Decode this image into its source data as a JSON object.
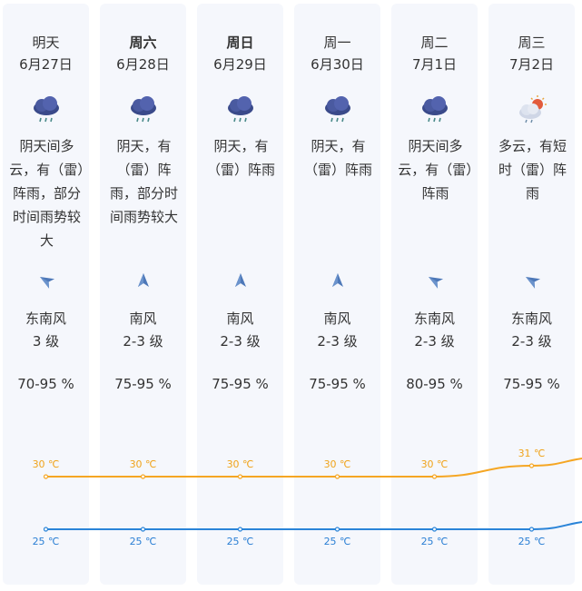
{
  "days": [
    {
      "name": "明天",
      "date": "6月27日",
      "bold": false,
      "icon": "thunder-rain-icon",
      "desc": "阴天间多云，有（雷）阵雨，部分时间雨势较大",
      "wind_icon": "wind-arrow-southeast-icon",
      "wind_rot": -60,
      "wind_dir": "东南风",
      "wind_lvl": "3 级",
      "humidity": "70-95 %",
      "hi": 30,
      "lo": 25,
      "hi_label": "30 ℃",
      "lo_label": "25 ℃"
    },
    {
      "name": "周六",
      "date": "6月28日",
      "bold": true,
      "icon": "thunder-rain-icon",
      "desc": "阴天，有（雷）阵雨，部分时间雨势较大",
      "wind_icon": "wind-arrow-south-icon",
      "wind_rot": 0,
      "wind_dir": "南风",
      "wind_lvl": "2-3 级",
      "humidity": "75-95 %",
      "hi": 30,
      "lo": 25,
      "hi_label": "30 ℃",
      "lo_label": "25 ℃"
    },
    {
      "name": "周日",
      "date": "6月29日",
      "bold": true,
      "icon": "thunder-rain-icon",
      "desc": "阴天，有（雷）阵雨",
      "wind_icon": "wind-arrow-south-icon",
      "wind_rot": 0,
      "wind_dir": "南风",
      "wind_lvl": "2-3 级",
      "humidity": "75-95 %",
      "hi": 30,
      "lo": 25,
      "hi_label": "30 ℃",
      "lo_label": "25 ℃"
    },
    {
      "name": "周一",
      "date": "6月30日",
      "bold": false,
      "icon": "thunder-rain-icon",
      "desc": "阴天，有（雷）阵雨",
      "wind_icon": "wind-arrow-south-icon",
      "wind_rot": 0,
      "wind_dir": "南风",
      "wind_lvl": "2-3 级",
      "humidity": "75-95 %",
      "hi": 30,
      "lo": 25,
      "hi_label": "30 ℃",
      "lo_label": "25 ℃"
    },
    {
      "name": "周二",
      "date": "7月1日",
      "bold": false,
      "icon": "thunder-rain-icon",
      "desc": "阴天间多云，有（雷）阵雨",
      "wind_icon": "wind-arrow-southeast-icon",
      "wind_rot": -60,
      "wind_dir": "东南风",
      "wind_lvl": "2-3 级",
      "humidity": "80-95 %",
      "hi": 30,
      "lo": 25,
      "hi_label": "30 ℃",
      "lo_label": "25 ℃"
    },
    {
      "name": "周三",
      "date": "7月2日",
      "bold": false,
      "icon": "partly-cloudy-thunder-icon",
      "desc": "多云，有短时（雷）阵雨",
      "wind_icon": "wind-arrow-southeast-icon",
      "wind_rot": -60,
      "wind_dir": "东南风",
      "wind_lvl": "2-3 级",
      "humidity": "75-95 %",
      "hi": 31,
      "lo": 25,
      "hi_label": "31 ℃",
      "lo_label": "25 ℃"
    }
  ],
  "colors": {
    "high_line": "#f5a623",
    "low_line": "#2a84d8",
    "card_bg": "#f5f7fc"
  }
}
